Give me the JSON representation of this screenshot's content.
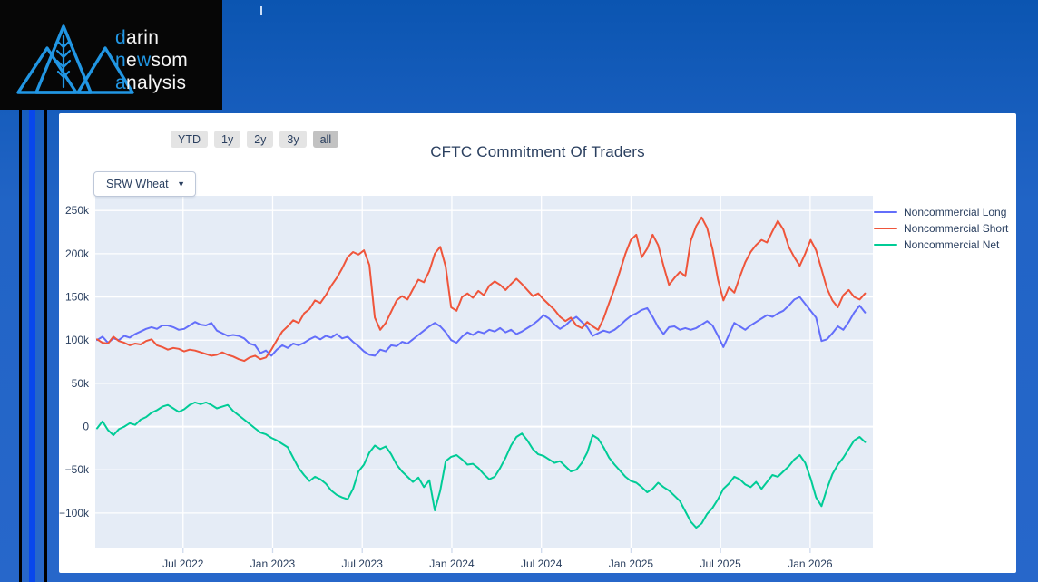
{
  "colors": {
    "page_bg_top": "#0b55b1",
    "page_bg": "#2164c6",
    "page_bg_bottom": "#2767ca",
    "panel_bg": "#ffffff",
    "plot_bg": "#e5ecf6",
    "grid": "#ffffff",
    "text": "#2a3f5f",
    "logo_accent": "#2196e3",
    "stripe_bright": "#0847ec",
    "button_bg": "#e4e4e4",
    "button_active_bg": "#c2c2c2",
    "dropdown_border": "#bec8d9"
  },
  "logo": {
    "lines": [
      {
        "segments": [
          {
            "text": "d",
            "accent": true
          },
          {
            "text": "arin",
            "accent": false
          }
        ]
      },
      {
        "segments": [
          {
            "text": "n",
            "accent": true
          },
          {
            "text": "e",
            "accent": false
          },
          {
            "text": "w",
            "accent": true
          },
          {
            "text": "som",
            "accent": false
          }
        ]
      },
      {
        "segments": [
          {
            "text": "a",
            "accent": true
          },
          {
            "text": "nalysis",
            "accent": false
          }
        ]
      }
    ]
  },
  "toolbar": {
    "range_buttons": [
      {
        "label": "YTD",
        "active": false
      },
      {
        "label": "1y",
        "active": false
      },
      {
        "label": "2y",
        "active": false
      },
      {
        "label": "3y",
        "active": false
      },
      {
        "label": "all",
        "active": true
      }
    ],
    "dropdown": {
      "value": "SRW Wheat",
      "arrow": "▼"
    }
  },
  "chart_data": {
    "type": "line",
    "title": "CFTC Commitment Of Traders",
    "xlabel": "",
    "ylabel": "",
    "grid": true,
    "legend_position": "top-right",
    "y_values_unit": "thousands of contracts (k)",
    "x_range": [
      2022.01,
      2026.35
    ],
    "y_range_k": [
      -141,
      267
    ],
    "x_ticks": [
      {
        "t": 2022.5,
        "label": "Jul 2022"
      },
      {
        "t": 2023.0,
        "label": "Jan 2023"
      },
      {
        "t": 2023.5,
        "label": "Jul 2023"
      },
      {
        "t": 2024.0,
        "label": "Jan 2024"
      },
      {
        "t": 2024.5,
        "label": "Jul 2024"
      },
      {
        "t": 2025.0,
        "label": "Jan 2025"
      },
      {
        "t": 2025.5,
        "label": "Jul 2025"
      },
      {
        "t": 2026.0,
        "label": "Jan 2026"
      }
    ],
    "y_ticks": [
      {
        "v": 250,
        "label": "250k"
      },
      {
        "v": 200,
        "label": "200k"
      },
      {
        "v": 150,
        "label": "150k"
      },
      {
        "v": 100,
        "label": "100k"
      },
      {
        "v": 50,
        "label": "50k"
      },
      {
        "v": 0,
        "label": "0"
      },
      {
        "v": -50,
        "label": "−50k"
      },
      {
        "v": -100,
        "label": "−100k"
      }
    ],
    "x_start": 2022.02,
    "x_step": 0.0304,
    "series": [
      {
        "name": "Noncommercial Long",
        "color": "#636efa",
        "values": [
          100,
          104,
          97,
          102,
          100,
          105,
          103,
          107,
          110,
          113,
          115,
          113,
          117,
          117,
          115,
          112,
          113,
          117,
          121,
          118,
          117,
          120,
          111,
          108,
          105,
          106,
          105,
          102,
          96,
          94,
          85,
          88,
          82,
          89,
          94,
          91,
          96,
          94,
          97,
          101,
          104,
          101,
          105,
          103,
          107,
          102,
          104,
          98,
          93,
          87,
          83,
          82,
          89,
          87,
          94,
          93,
          98,
          96,
          101,
          106,
          111,
          116,
          120,
          116,
          109,
          100,
          97,
          104,
          109,
          106,
          110,
          108,
          112,
          110,
          114,
          109,
          112,
          107,
          110,
          114,
          118,
          123,
          129,
          125,
          118,
          113,
          117,
          123,
          127,
          121,
          115,
          105,
          108,
          111,
          109,
          112,
          117,
          123,
          128,
          131,
          135,
          137,
          127,
          115,
          107,
          115,
          116,
          112,
          114,
          112,
          114,
          118,
          122,
          117,
          105,
          92,
          106,
          120,
          116,
          112,
          117,
          121,
          125,
          129,
          127,
          131,
          134,
          140,
          147,
          150,
          142,
          134,
          126,
          99,
          101,
          108,
          116,
          112,
          121,
          132,
          140,
          132
        ]
      },
      {
        "name": "Noncommercial Short",
        "color": "#ef553b",
        "values": [
          101,
          97,
          96,
          104,
          99,
          97,
          94,
          96,
          95,
          99,
          101,
          94,
          92,
          89,
          91,
          90,
          87,
          89,
          88,
          86,
          84,
          82,
          83,
          86,
          83,
          81,
          78,
          76,
          80,
          82,
          78,
          80,
          89,
          100,
          110,
          116,
          123,
          120,
          131,
          136,
          146,
          143,
          152,
          163,
          172,
          183,
          196,
          202,
          199,
          204,
          187,
          126,
          112,
          120,
          133,
          146,
          151,
          147,
          159,
          170,
          167,
          180,
          200,
          208,
          185,
          138,
          134,
          150,
          154,
          149,
          157,
          152,
          163,
          168,
          164,
          158,
          165,
          171,
          165,
          158,
          151,
          154,
          147,
          141,
          135,
          127,
          122,
          126,
          117,
          114,
          121,
          116,
          112,
          125,
          143,
          160,
          180,
          200,
          216,
          222,
          196,
          206,
          222,
          210,
          186,
          164,
          172,
          179,
          174,
          215,
          232,
          242,
          230,
          205,
          170,
          146,
          161,
          155,
          173,
          190,
          202,
          210,
          216,
          213,
          226,
          238,
          228,
          208,
          196,
          186,
          200,
          216,
          204,
          182,
          160,
          146,
          138,
          152,
          158,
          150,
          147,
          154
        ]
      },
      {
        "name": "Noncommercial Net",
        "color": "#00cc96",
        "values": [
          -2,
          6,
          -4,
          -10,
          -3,
          0,
          4,
          2,
          8,
          11,
          16,
          19,
          23,
          25,
          21,
          17,
          20,
          25,
          28,
          26,
          28,
          25,
          21,
          23,
          25,
          18,
          13,
          8,
          3,
          -2,
          -7,
          -9,
          -13,
          -16,
          -20,
          -24,
          -36,
          -48,
          -56,
          -63,
          -58,
          -61,
          -66,
          -74,
          -79,
          -82,
          -84,
          -72,
          -52,
          -44,
          -30,
          -22,
          -26,
          -23,
          -32,
          -44,
          -52,
          -58,
          -64,
          -59,
          -70,
          -62,
          -97,
          -74,
          -40,
          -35,
          -33,
          -38,
          -44,
          -43,
          -48,
          -55,
          -61,
          -58,
          -48,
          -36,
          -22,
          -12,
          -8,
          -16,
          -26,
          -32,
          -34,
          -38,
          -42,
          -40,
          -46,
          -52,
          -50,
          -42,
          -30,
          -10,
          -14,
          -24,
          -36,
          -44,
          -51,
          -58,
          -63,
          -65,
          -70,
          -76,
          -72,
          -65,
          -70,
          -74,
          -80,
          -86,
          -98,
          -110,
          -117,
          -112,
          -101,
          -94,
          -84,
          -72,
          -66,
          -58,
          -61,
          -67,
          -70,
          -64,
          -72,
          -64,
          -56,
          -58,
          -52,
          -46,
          -38,
          -33,
          -42,
          -60,
          -82,
          -92,
          -72,
          -55,
          -44,
          -36,
          -26,
          -16,
          -12,
          -18
        ]
      }
    ]
  }
}
